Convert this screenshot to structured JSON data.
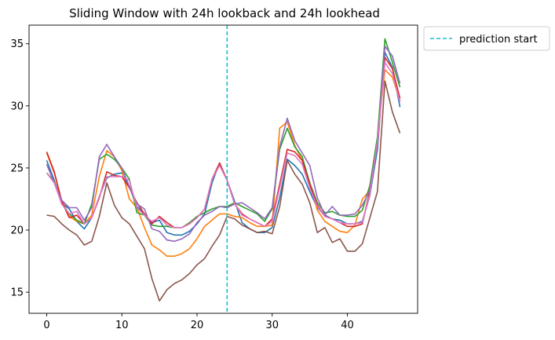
{
  "chart_data": {
    "type": "line",
    "title": "Sliding Window with 24h lookback and 24h lookhead",
    "xlabel": "",
    "ylabel": "",
    "xlim": [
      -2.35,
      49.35
    ],
    "ylim": [
      13.3,
      36.5
    ],
    "xticks": [
      0,
      10,
      20,
      30,
      40
    ],
    "yticks": [
      15,
      20,
      25,
      30,
      35
    ],
    "grid": false,
    "legend_position": "outside-top-right",
    "x": [
      0,
      1,
      2,
      3,
      4,
      5,
      6,
      7,
      8,
      9,
      10,
      11,
      12,
      13,
      14,
      15,
      16,
      17,
      18,
      19,
      20,
      21,
      22,
      23,
      24,
      25,
      26,
      27,
      28,
      29,
      30,
      31,
      32,
      33,
      34,
      35,
      36,
      37,
      38,
      39,
      40,
      41,
      42,
      43,
      44,
      45,
      46,
      47
    ],
    "series": [
      {
        "color": "#1f77b4",
        "values": [
          25.6,
          24.0,
          22.2,
          21.7,
          20.7,
          20.1,
          21.0,
          22.7,
          24.2,
          24.5,
          24.6,
          23.5,
          21.9,
          21.3,
          20.6,
          20.8,
          19.8,
          19.6,
          19.6,
          19.9,
          20.5,
          21.3,
          23.8,
          25.4,
          24.0,
          22.3,
          20.6,
          20.1,
          19.8,
          19.8,
          20.2,
          22.6,
          25.7,
          25.2,
          24.5,
          23.1,
          21.8,
          21.2,
          20.9,
          20.8,
          20.5,
          20.5,
          20.7,
          22.8,
          26.5,
          34.3,
          33.1,
          29.9
        ]
      },
      {
        "color": "#ff7f0e",
        "values": [
          26.2,
          24.6,
          22.4,
          21.1,
          20.7,
          20.5,
          21.2,
          24.3,
          26.4,
          25.9,
          24.8,
          22.5,
          21.8,
          20.2,
          18.8,
          18.4,
          17.9,
          17.9,
          18.1,
          18.5,
          19.3,
          20.3,
          20.8,
          21.3,
          21.3,
          21.1,
          21.0,
          20.6,
          20.3,
          20.3,
          20.4,
          28.2,
          28.7,
          26.8,
          25.6,
          23.8,
          21.6,
          20.7,
          20.3,
          19.9,
          19.8,
          20.4,
          22.5,
          23.2,
          27.4,
          32.9,
          32.3,
          30.4
        ]
      },
      {
        "color": "#2ca02c",
        "values": [
          24.6,
          23.9,
          22.2,
          21.3,
          20.8,
          20.5,
          22.1,
          25.7,
          26.1,
          25.7,
          25.0,
          24.1,
          21.4,
          21.2,
          20.4,
          20.3,
          20.3,
          20.2,
          20.2,
          20.6,
          21.1,
          21.4,
          21.7,
          21.9,
          21.9,
          22.2,
          21.9,
          21.6,
          21.3,
          20.7,
          21.7,
          26.5,
          28.2,
          26.7,
          25.9,
          23.8,
          22.2,
          21.4,
          21.5,
          21.2,
          21.1,
          21.1,
          21.6,
          23.6,
          27.5,
          35.4,
          33.5,
          31.5
        ]
      },
      {
        "color": "#d62728",
        "values": [
          26.3,
          24.7,
          22.3,
          21.0,
          21.2,
          20.5,
          21.0,
          22.6,
          24.7,
          24.4,
          24.3,
          23.4,
          22.2,
          21.3,
          20.5,
          21.1,
          20.6,
          20.2,
          20.2,
          20.5,
          21.0,
          21.7,
          24.1,
          25.4,
          24.0,
          22.1,
          21.3,
          20.9,
          20.6,
          20.3,
          20.9,
          23.7,
          26.5,
          26.3,
          25.6,
          23.7,
          22.0,
          21.1,
          20.9,
          20.6,
          20.3,
          20.3,
          20.5,
          23.2,
          27.0,
          33.9,
          33.0,
          30.6
        ]
      },
      {
        "color": "#9467bd",
        "values": [
          25.3,
          23.8,
          22.4,
          21.8,
          21.8,
          20.8,
          21.8,
          25.9,
          26.9,
          25.9,
          25.0,
          23.5,
          22.1,
          21.7,
          20.1,
          19.9,
          19.2,
          19.1,
          19.3,
          19.7,
          20.6,
          21.2,
          21.5,
          21.9,
          21.8,
          22.1,
          22.2,
          21.8,
          21.4,
          20.9,
          21.8,
          26.7,
          29.0,
          27.2,
          26.2,
          25.2,
          22.6,
          21.2,
          21.9,
          21.2,
          21.2,
          21.3,
          22.0,
          23.2,
          27.0,
          34.8,
          34.0,
          31.8
        ]
      },
      {
        "color": "#8c564b",
        "values": [
          21.2,
          21.1,
          20.5,
          20.0,
          19.6,
          18.8,
          19.1,
          21.1,
          23.8,
          22.0,
          21.0,
          20.5,
          19.5,
          18.5,
          16.1,
          14.3,
          15.2,
          15.7,
          16.0,
          16.5,
          17.2,
          17.7,
          18.7,
          19.6,
          21.1,
          20.9,
          20.4,
          20.1,
          19.8,
          19.9,
          19.7,
          21.9,
          25.6,
          24.5,
          23.7,
          22.2,
          19.8,
          20.2,
          19.0,
          19.3,
          18.3,
          18.3,
          18.9,
          21.0,
          23.1,
          32.0,
          29.5,
          27.8
        ]
      },
      {
        "color": "#e377c2",
        "values": [
          24.6,
          23.8,
          22.1,
          21.3,
          21.5,
          20.5,
          21.0,
          22.7,
          24.3,
          24.3,
          24.3,
          24.0,
          21.8,
          21.2,
          20.7,
          21.0,
          20.4,
          20.2,
          20.2,
          20.5,
          21.0,
          21.7,
          24.1,
          25.2,
          24.0,
          22.1,
          21.2,
          20.9,
          20.6,
          20.3,
          20.7,
          23.4,
          26.2,
          26.0,
          25.3,
          23.4,
          21.9,
          21.1,
          20.9,
          20.6,
          20.5,
          20.5,
          20.6,
          22.9,
          27.1,
          33.5,
          32.6,
          30.3
        ]
      }
    ],
    "vline": {
      "x": 24,
      "label": "prediction start",
      "color": "#17becf"
    }
  }
}
